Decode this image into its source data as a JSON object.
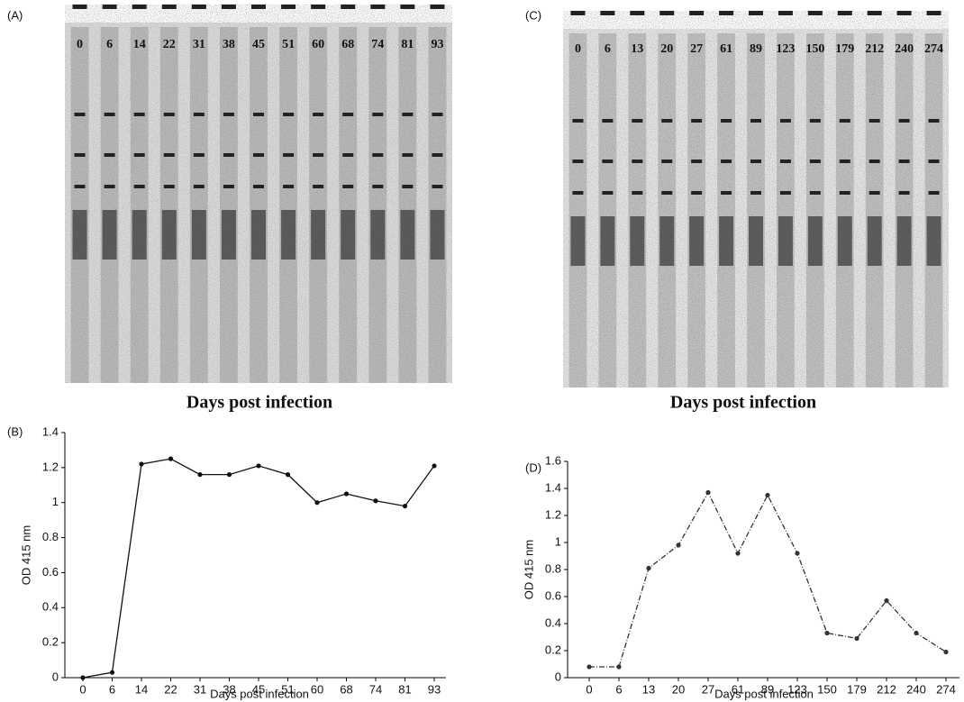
{
  "blots": [
    {
      "label": "(A)",
      "lanes": [
        "0",
        "6",
        "14",
        "22",
        "31",
        "38",
        "45",
        "51",
        "60",
        "68",
        "74",
        "81",
        "93"
      ],
      "xlabel": "Days post infection"
    },
    {
      "label": "(C)",
      "lanes": [
        "0",
        "6",
        "13",
        "20",
        "27",
        "61",
        "89",
        "123",
        "150",
        "179",
        "212",
        "240",
        "274"
      ],
      "xlabel": "Days post infection"
    }
  ],
  "chart_data": [
    {
      "type": "line",
      "title": "(B)",
      "xlabel": "Days post infection",
      "ylabel": "OD 415 nm",
      "categories": [
        "0",
        "6",
        "14",
        "22",
        "31",
        "38",
        "45",
        "51",
        "60",
        "68",
        "74",
        "81",
        "93"
      ],
      "values": [
        0,
        0.03,
        1.22,
        1.25,
        1.16,
        1.16,
        1.21,
        1.16,
        1.0,
        1.05,
        1.01,
        0.98,
        1.21
      ],
      "color": "#111111",
      "dashed": false,
      "ylim": [
        0,
        1.4
      ],
      "yticks": [
        0,
        0.2,
        0.4,
        0.6,
        0.8,
        1,
        1.2,
        1.4
      ]
    },
    {
      "type": "line",
      "title": "(D)",
      "xlabel": "Days post infection",
      "ylabel": "OD 415 nm",
      "categories": [
        "0",
        "6",
        "13",
        "20",
        "27",
        "61",
        "89",
        "123",
        "150",
        "179",
        "212",
        "240",
        "274"
      ],
      "values": [
        0.08,
        0.08,
        0.81,
        0.98,
        1.37,
        0.92,
        1.35,
        0.92,
        0.33,
        0.29,
        0.57,
        0.33,
        0.19
      ],
      "color": "#333333",
      "dashed": true,
      "ylim": [
        0,
        1.6
      ],
      "yticks": [
        0,
        0.2,
        0.4,
        0.6,
        0.8,
        1,
        1.2,
        1.4,
        1.6
      ]
    }
  ]
}
